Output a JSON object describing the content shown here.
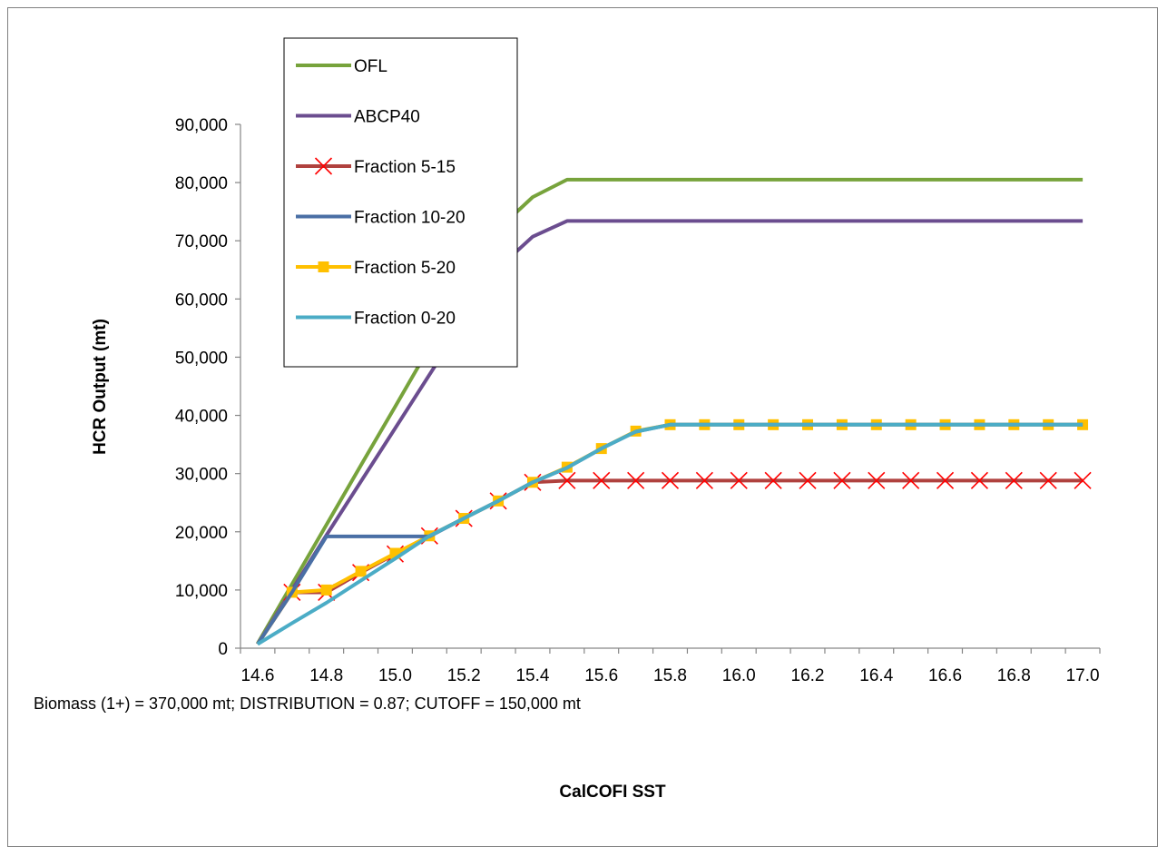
{
  "chart_data": {
    "type": "line",
    "xlabel": "CalCOFI SST",
    "ylabel": "HCR Output (mt)",
    "note": "Biomass (1+) = 370,000 mt; DISTRIBUTION = 0.87; CUTOFF = 150,000 mt",
    "xlim": [
      14.6,
      17.0
    ],
    "ylim": [
      0,
      90000
    ],
    "x_ticks": [
      "14.6",
      "14.8",
      "15.0",
      "15.2",
      "15.4",
      "15.6",
      "15.8",
      "16.0",
      "16.2",
      "16.4",
      "16.6",
      "16.8",
      "17.0"
    ],
    "y_ticks": [
      "0",
      "10,000",
      "20,000",
      "30,000",
      "40,000",
      "50,000",
      "60,000",
      "70,000",
      "80,000",
      "90,000"
    ],
    "legend_position": "top-left",
    "grid": false,
    "x": [
      14.6,
      14.7,
      14.8,
      14.9,
      15.0,
      15.1,
      15.2,
      15.3,
      15.4,
      15.5,
      15.6,
      15.7,
      15.8,
      15.9,
      16.0,
      16.1,
      16.2,
      16.3,
      16.4,
      16.5,
      16.6,
      16.7,
      16.8,
      16.9,
      17.0
    ],
    "series": [
      {
        "name": "OFL",
        "color": "#77A33C",
        "marker": "none",
        "values": [
          800,
          11000,
          21200,
          31400,
          41500,
          51700,
          61900,
          72000,
          77500,
          80500,
          80500,
          80500,
          80500,
          80500,
          80500,
          80500,
          80500,
          80500,
          80500,
          80500,
          80500,
          80500,
          80500,
          80500,
          80500
        ]
      },
      {
        "name": "ABCP40",
        "color": "#6B4D8F",
        "marker": "none",
        "values": [
          700,
          10000,
          19400,
          28600,
          37800,
          47000,
          56200,
          65300,
          70700,
          73400,
          73400,
          73400,
          73400,
          73400,
          73400,
          73400,
          73400,
          73400,
          73400,
          73400,
          73400,
          73400,
          73400,
          73400,
          73400
        ]
      },
      {
        "name": "Fraction 5-15",
        "color": "#B0413E",
        "marker": "x",
        "values": [
          700,
          9600,
          9600,
          13000,
          16200,
          19300,
          22300,
          25300,
          28500,
          28800,
          28800,
          28800,
          28800,
          28800,
          28800,
          28800,
          28800,
          28800,
          28800,
          28800,
          28800,
          28800,
          28800,
          28800,
          28800
        ]
      },
      {
        "name": "Fraction 10-20",
        "color": "#4A6FA5",
        "marker": "none",
        "values": [
          700,
          9600,
          19200,
          19200,
          19200,
          19200,
          22300,
          25300,
          28500,
          31000,
          34300,
          37200,
          38400,
          38400,
          38400,
          38400,
          38400,
          38400,
          38400,
          38400,
          38400,
          38400,
          38400,
          38400,
          38400
        ]
      },
      {
        "name": "Fraction 5-20",
        "color": "#FFC000",
        "marker": "square",
        "values": [
          700,
          9600,
          10000,
          13200,
          16300,
          19300,
          22300,
          25300,
          28500,
          31100,
          34300,
          37300,
          38400,
          38400,
          38400,
          38400,
          38400,
          38400,
          38400,
          38400,
          38400,
          38400,
          38400,
          38400,
          38400
        ]
      },
      {
        "name": "Fraction 0-20",
        "color": "#4BACC6",
        "marker": "none",
        "values": [
          700,
          4300,
          7800,
          11600,
          15400,
          19300,
          22300,
          25300,
          28500,
          31000,
          34300,
          37200,
          38400,
          38400,
          38400,
          38400,
          38400,
          38400,
          38400,
          38400,
          38400,
          38400,
          38400,
          38400,
          38400
        ]
      }
    ]
  }
}
